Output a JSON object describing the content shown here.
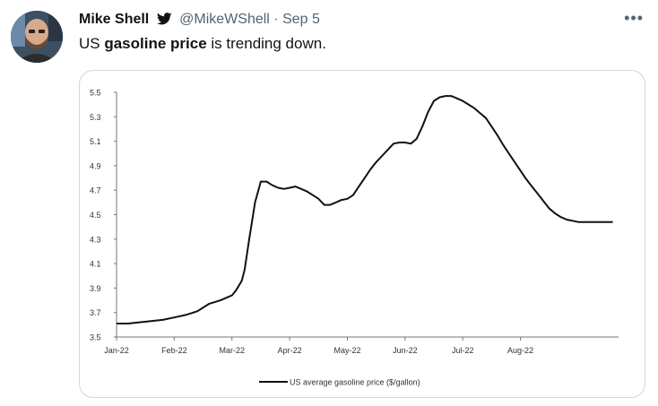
{
  "tweet": {
    "author_name": "Mike Shell",
    "handle": "@MikeWShell",
    "separator": "·",
    "date": "Sep 5",
    "more_label": "•••",
    "text_before": "US ",
    "text_bold": "gasoline price",
    "text_after": " is trending down."
  },
  "colors": {
    "text": "#0f1419",
    "secondary": "#536471",
    "card_border": "#cfd9de",
    "line": "#111111"
  },
  "icons": {
    "badge": "twitter-bird-icon",
    "more": "more-horizontal-icon"
  },
  "chart_data": {
    "type": "line",
    "y_ticks": [
      "5.5",
      "5.3",
      "5.1",
      "4.9",
      "4.7",
      "4.5",
      "4.3",
      "4.1",
      "3.9",
      "3.7",
      "3.5"
    ],
    "ylim": [
      3.5,
      5.5
    ],
    "x_ticks": [
      "Jan-22",
      "Feb-22",
      "Mar-22",
      "Apr-22",
      "May-22",
      "Jun-22",
      "Jul-22",
      "Aug-22"
    ],
    "xlim": [
      0,
      8.7
    ],
    "grid": false,
    "legend_position": "bottom-center",
    "series": [
      {
        "name": "US average gasoline price ($/gallon)",
        "x": [
          0,
          0.2,
          0.4,
          0.6,
          0.8,
          1.0,
          1.2,
          1.4,
          1.6,
          1.8,
          1.9,
          2.0,
          2.07,
          2.12,
          2.17,
          2.22,
          2.3,
          2.4,
          2.5,
          2.6,
          2.7,
          2.8,
          2.9,
          3.0,
          3.1,
          3.2,
          3.3,
          3.4,
          3.5,
          3.6,
          3.7,
          3.8,
          3.9,
          4.0,
          4.1,
          4.2,
          4.3,
          4.4,
          4.5,
          4.6,
          4.7,
          4.8,
          4.9,
          5.0,
          5.1,
          5.2,
          5.3,
          5.4,
          5.5,
          5.6,
          5.7,
          5.8,
          5.9,
          6.0,
          6.1,
          6.2,
          6.3,
          6.4,
          6.5,
          6.6,
          6.7,
          6.8,
          6.9,
          7.0,
          7.1,
          7.2,
          7.3,
          7.4,
          7.5,
          7.6,
          7.7,
          7.8,
          7.9,
          8.0,
          8.1,
          8.2,
          8.3,
          8.4,
          8.5,
          8.6
        ],
        "values": [
          3.61,
          3.61,
          3.62,
          3.63,
          3.64,
          3.66,
          3.68,
          3.71,
          3.77,
          3.8,
          3.82,
          3.84,
          3.88,
          3.92,
          3.96,
          4.05,
          4.3,
          4.6,
          4.77,
          4.77,
          4.74,
          4.72,
          4.71,
          4.72,
          4.73,
          4.71,
          4.69,
          4.66,
          4.63,
          4.58,
          4.58,
          4.6,
          4.62,
          4.63,
          4.66,
          4.73,
          4.8,
          4.87,
          4.93,
          4.98,
          5.03,
          5.08,
          5.09,
          5.09,
          5.08,
          5.12,
          5.22,
          5.34,
          5.43,
          5.46,
          5.47,
          5.47,
          5.45,
          5.43,
          5.4,
          5.37,
          5.33,
          5.29,
          5.22,
          5.15,
          5.07,
          5.0,
          4.93,
          4.86,
          4.79,
          4.73,
          4.67,
          4.61,
          4.55,
          4.51,
          4.48,
          4.46,
          4.45,
          4.44,
          4.44,
          4.44,
          4.44,
          4.44,
          4.44,
          4.44
        ]
      }
    ],
    "title": "",
    "xlabel": "",
    "ylabel": ""
  }
}
